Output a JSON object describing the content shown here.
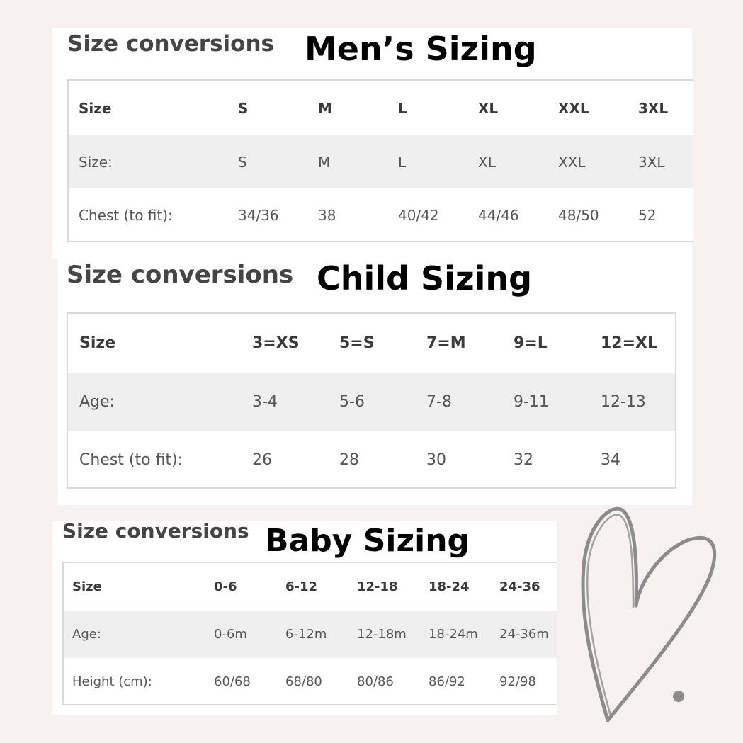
{
  "mens": {
    "section_label": "Size conversions",
    "title": "Men’s Sizing",
    "header": [
      "Size",
      "S",
      "M",
      "L",
      "XL",
      "XXL",
      "3XL"
    ],
    "rows": [
      [
        "Size:",
        "S",
        "M",
        "L",
        "XL",
        "XXL",
        "3XL"
      ],
      [
        "Chest (to fit):",
        "34/36",
        "38",
        "40/42",
        "44/46",
        "48/50",
        "52"
      ]
    ]
  },
  "child": {
    "section_label": "Size conversions",
    "title": "Child Sizing",
    "header": [
      "Size",
      "3=XS",
      "5=S",
      "7=M",
      "9=L",
      "12=XL"
    ],
    "rows": [
      [
        "Age:",
        "3-4",
        "5-6",
        "7-8",
        "9-11",
        "12-13"
      ],
      [
        "Chest (to fit):",
        "26",
        "28",
        "30",
        "32",
        "34"
      ]
    ]
  },
  "baby": {
    "section_label": "Size conversions",
    "title": "Baby Sizing",
    "header": [
      "Size",
      "0-6",
      "6-12",
      "12-18",
      "18-24",
      "24-36"
    ],
    "rows": [
      [
        "Age:",
        "0-6m",
        "6-12m",
        "12-18m",
        "18-24m",
        "24-36m"
      ],
      [
        "Height (cm):",
        "60/68",
        "68/80",
        "80/86",
        "86/92",
        "92/98"
      ]
    ]
  },
  "colors": {
    "background": "#f8f1f1",
    "heart": "#8c8c8c",
    "row_alt": "#efefef"
  },
  "decoration": "heart-icon"
}
